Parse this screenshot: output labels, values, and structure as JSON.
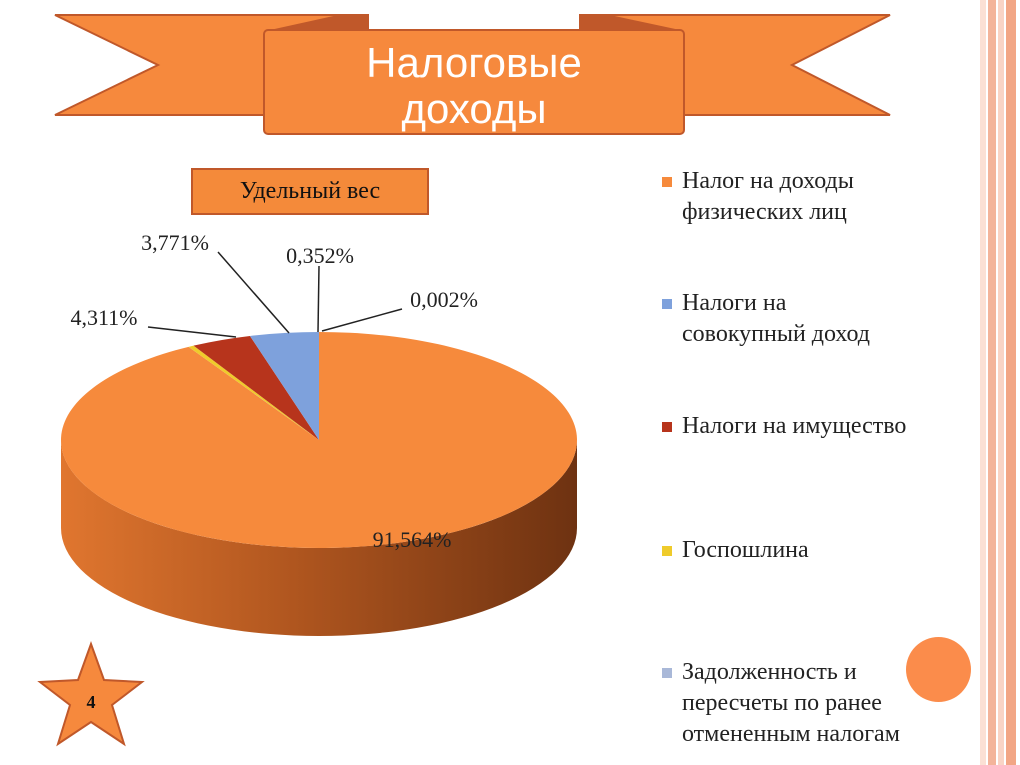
{
  "title": "Налоговые\nдоходы",
  "subtitle": "Удельный вес",
  "slide_number": "4",
  "colors": {
    "accent": "#f48a3a",
    "banner": "#f6893d",
    "banner_border": "#c0582a",
    "frame_stripes": [
      "#f9d4c5",
      "#f1a889",
      "#fbe0d4",
      "#f5b89f"
    ]
  },
  "chart_data": {
    "type": "pie",
    "title": "",
    "slices": [
      {
        "name": "Налог на доходы физических лиц",
        "value": 91.564,
        "label": "91,564%",
        "color": "#f68a3c"
      },
      {
        "name": "Налоги на совокупный доход",
        "value": 4.311,
        "label": "4,311%",
        "color": "#7ea1dc"
      },
      {
        "name": "Налоги на имущество",
        "value": 3.771,
        "label": "3,771%",
        "color": "#b7341c"
      },
      {
        "name": "Госпошлина",
        "value": 0.352,
        "label": "0,352%",
        "color": "#efcb2b"
      },
      {
        "name": "Задолженность и пересчеты по ранее отмененным налогам",
        "value": 0.002,
        "label": "0,002%",
        "color": "#a9b8d8"
      }
    ],
    "legend_placement": "right"
  },
  "legend": [
    {
      "label": "Налог на доходы\nфизических лиц",
      "color": "#f68a3c"
    },
    {
      "label": "Налоги на\nсовокупный доход",
      "color": "#7ea1dc"
    },
    {
      "label": "Налоги на имущество",
      "color": "#b7341c"
    },
    {
      "label": "Госпошлина",
      "color": "#efcb2b"
    },
    {
      "label": "Задолженность и\nпересчеты по ранее\nотмененным налогам",
      "color": "#a9b8d8"
    }
  ]
}
